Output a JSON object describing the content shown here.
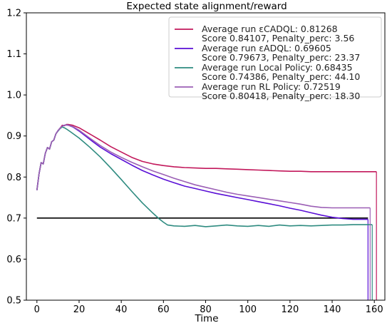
{
  "chart_data": {
    "type": "line",
    "title": "Expected state alignment/reward",
    "xlabel": "Time",
    "ylabel": "",
    "xlim": [
      -5,
      165
    ],
    "ylim": [
      0.5,
      1.2
    ],
    "xticks": [
      0,
      20,
      40,
      60,
      80,
      100,
      120,
      140,
      160
    ],
    "xtick_labels": [
      "0",
      "20",
      "40",
      "60",
      "80",
      "100",
      "120",
      "140",
      "160"
    ],
    "yticks": [
      0.5,
      0.6,
      0.7,
      0.8,
      0.9,
      1.0,
      1.1,
      1.2
    ],
    "ytick_labels": [
      "0.5",
      "0.6",
      "0.7",
      "0.8",
      "0.9",
      "1.0",
      "1.1",
      "1.2"
    ],
    "grid": false,
    "legend_position": "top-right",
    "reference_line": {
      "y": 0.7,
      "x_range": [
        0,
        157
      ],
      "color": "#000000"
    },
    "series": [
      {
        "name": "Average run εCADQL: 0.81268",
        "name2": "Score 0.84107, Penalty_perc: 3.56",
        "color": "#c2185b",
        "points": [
          [
            0,
            0.768
          ],
          [
            1,
            0.808
          ],
          [
            2,
            0.835
          ],
          [
            3,
            0.832
          ],
          [
            4,
            0.858
          ],
          [
            5,
            0.872
          ],
          [
            6,
            0.868
          ],
          [
            7,
            0.886
          ],
          [
            8,
            0.89
          ],
          [
            9,
            0.905
          ],
          [
            10,
            0.913
          ],
          [
            11,
            0.919
          ],
          [
            12,
            0.926
          ],
          [
            13,
            0.925
          ],
          [
            14,
            0.928
          ],
          [
            15,
            0.928
          ],
          [
            17,
            0.926
          ],
          [
            20,
            0.92
          ],
          [
            25,
            0.905
          ],
          [
            30,
            0.89
          ],
          [
            35,
            0.874
          ],
          [
            40,
            0.861
          ],
          [
            45,
            0.848
          ],
          [
            50,
            0.838
          ],
          [
            55,
            0.832
          ],
          [
            60,
            0.828
          ],
          [
            65,
            0.825
          ],
          [
            70,
            0.823
          ],
          [
            75,
            0.822
          ],
          [
            80,
            0.821
          ],
          [
            85,
            0.821
          ],
          [
            90,
            0.82
          ],
          [
            95,
            0.819
          ],
          [
            100,
            0.818
          ],
          [
            105,
            0.817
          ],
          [
            110,
            0.816
          ],
          [
            115,
            0.815
          ],
          [
            120,
            0.814
          ],
          [
            125,
            0.814
          ],
          [
            130,
            0.813
          ],
          [
            135,
            0.813
          ],
          [
            140,
            0.813
          ],
          [
            145,
            0.813
          ],
          [
            150,
            0.813
          ],
          [
            155,
            0.813
          ],
          [
            161,
            0.813
          ]
        ],
        "drop": {
          "x": 161,
          "to": 0.5
        }
      },
      {
        "name": "Average run εADQL: 0.69605",
        "name2": "Score 0.79673, Penalty_perc: 23.37",
        "color": "#5a0fd6",
        "points": [
          [
            0,
            0.768
          ],
          [
            1,
            0.808
          ],
          [
            2,
            0.835
          ],
          [
            3,
            0.832
          ],
          [
            4,
            0.858
          ],
          [
            5,
            0.872
          ],
          [
            6,
            0.868
          ],
          [
            7,
            0.886
          ],
          [
            8,
            0.89
          ],
          [
            9,
            0.905
          ],
          [
            10,
            0.913
          ],
          [
            11,
            0.919
          ],
          [
            12,
            0.924
          ],
          [
            13,
            0.926
          ],
          [
            14,
            0.927
          ],
          [
            15,
            0.926
          ],
          [
            17,
            0.922
          ],
          [
            20,
            0.912
          ],
          [
            25,
            0.892
          ],
          [
            30,
            0.873
          ],
          [
            35,
            0.857
          ],
          [
            40,
            0.843
          ],
          [
            45,
            0.829
          ],
          [
            50,
            0.816
          ],
          [
            55,
            0.805
          ],
          [
            60,
            0.795
          ],
          [
            65,
            0.786
          ],
          [
            70,
            0.778
          ],
          [
            75,
            0.772
          ],
          [
            80,
            0.766
          ],
          [
            85,
            0.76
          ],
          [
            90,
            0.755
          ],
          [
            95,
            0.75
          ],
          [
            100,
            0.745
          ],
          [
            105,
            0.74
          ],
          [
            110,
            0.735
          ],
          [
            115,
            0.73
          ],
          [
            120,
            0.724
          ],
          [
            125,
            0.719
          ],
          [
            130,
            0.713
          ],
          [
            135,
            0.707
          ],
          [
            140,
            0.702
          ],
          [
            145,
            0.699
          ],
          [
            150,
            0.697
          ],
          [
            155,
            0.697
          ],
          [
            157,
            0.697
          ]
        ],
        "drop": {
          "x": 157,
          "to": 0.5
        }
      },
      {
        "name": "Average run Local Policy: 0.68435",
        "name2": "Score 0.74386, Penalty_perc: 44.10",
        "color": "#2e8b80",
        "points": [
          [
            0,
            0.768
          ],
          [
            1,
            0.808
          ],
          [
            2,
            0.835
          ],
          [
            3,
            0.832
          ],
          [
            4,
            0.858
          ],
          [
            5,
            0.872
          ],
          [
            6,
            0.868
          ],
          [
            7,
            0.886
          ],
          [
            8,
            0.89
          ],
          [
            9,
            0.905
          ],
          [
            10,
            0.912
          ],
          [
            11,
            0.918
          ],
          [
            12,
            0.922
          ],
          [
            13,
            0.92
          ],
          [
            14,
            0.917
          ],
          [
            16,
            0.91
          ],
          [
            20,
            0.895
          ],
          [
            25,
            0.873
          ],
          [
            30,
            0.849
          ],
          [
            35,
            0.822
          ],
          [
            40,
            0.794
          ],
          [
            45,
            0.765
          ],
          [
            50,
            0.737
          ],
          [
            55,
            0.712
          ],
          [
            58,
            0.698
          ],
          [
            60,
            0.69
          ],
          [
            62,
            0.683
          ],
          [
            65,
            0.681
          ],
          [
            70,
            0.68
          ],
          [
            75,
            0.682
          ],
          [
            80,
            0.679
          ],
          [
            85,
            0.681
          ],
          [
            90,
            0.683
          ],
          [
            95,
            0.681
          ],
          [
            100,
            0.68
          ],
          [
            105,
            0.682
          ],
          [
            110,
            0.68
          ],
          [
            115,
            0.683
          ],
          [
            120,
            0.681
          ],
          [
            125,
            0.682
          ],
          [
            130,
            0.681
          ],
          [
            135,
            0.682
          ],
          [
            140,
            0.683
          ],
          [
            145,
            0.683
          ],
          [
            150,
            0.684
          ],
          [
            155,
            0.684
          ],
          [
            159,
            0.684
          ]
        ],
        "drop": {
          "x": 159,
          "to": 0.5
        }
      },
      {
        "name": "Average run RL Policy: 0.72519",
        "name2": "Score 0.80418, Penalty_perc: 18.30",
        "color": "#9b5fb5",
        "points": [
          [
            0,
            0.768
          ],
          [
            1,
            0.808
          ],
          [
            2,
            0.835
          ],
          [
            3,
            0.832
          ],
          [
            4,
            0.858
          ],
          [
            5,
            0.872
          ],
          [
            6,
            0.868
          ],
          [
            7,
            0.886
          ],
          [
            8,
            0.89
          ],
          [
            9,
            0.905
          ],
          [
            10,
            0.913
          ],
          [
            11,
            0.919
          ],
          [
            12,
            0.924
          ],
          [
            13,
            0.926
          ],
          [
            14,
            0.927
          ],
          [
            15,
            0.926
          ],
          [
            17,
            0.923
          ],
          [
            20,
            0.914
          ],
          [
            25,
            0.895
          ],
          [
            30,
            0.877
          ],
          [
            35,
            0.861
          ],
          [
            40,
            0.848
          ],
          [
            45,
            0.836
          ],
          [
            50,
            0.825
          ],
          [
            55,
            0.815
          ],
          [
            60,
            0.806
          ],
          [
            65,
            0.797
          ],
          [
            70,
            0.789
          ],
          [
            75,
            0.781
          ],
          [
            80,
            0.775
          ],
          [
            85,
            0.769
          ],
          [
            90,
            0.763
          ],
          [
            95,
            0.758
          ],
          [
            100,
            0.754
          ],
          [
            105,
            0.75
          ],
          [
            110,
            0.746
          ],
          [
            115,
            0.742
          ],
          [
            120,
            0.738
          ],
          [
            125,
            0.734
          ],
          [
            130,
            0.729
          ],
          [
            135,
            0.726
          ],
          [
            140,
            0.725
          ],
          [
            145,
            0.725
          ],
          [
            150,
            0.725
          ],
          [
            155,
            0.725
          ],
          [
            158,
            0.725
          ]
        ],
        "drop": {
          "x": 158,
          "to": 0.5
        }
      }
    ]
  }
}
